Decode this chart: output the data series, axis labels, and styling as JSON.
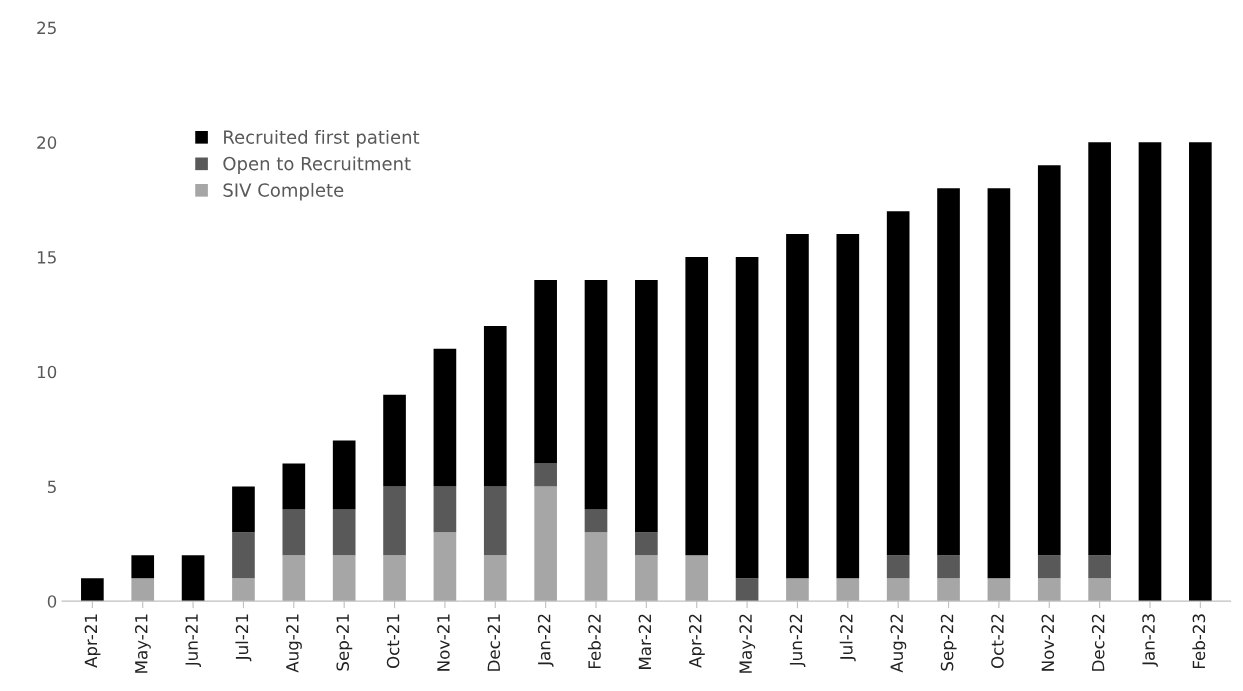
{
  "chart_data": {
    "type": "bar",
    "stacked": true,
    "categories": [
      "Apr-21",
      "May-21",
      "Jun-21",
      "Jul-21",
      "Aug-21",
      "Sep-21",
      "Oct-21",
      "Nov-21",
      "Dec-21",
      "Jan-22",
      "Feb-22",
      "Mar-22",
      "Apr-22",
      "May-22",
      "Jun-22",
      "Jul-22",
      "Aug-22",
      "Sep-22",
      "Oct-22",
      "Nov-22",
      "Dec-22",
      "Jan-23",
      "Feb-23"
    ],
    "series": [
      {
        "name": "SIV Complete",
        "color": "#a6a6a6",
        "values": [
          0,
          1,
          0,
          1,
          2,
          2,
          2,
          3,
          2,
          5,
          3,
          2,
          2,
          0,
          1,
          1,
          1,
          1,
          1,
          1,
          1,
          0,
          0
        ]
      },
      {
        "name": "Open to Recruitment",
        "color": "#595959",
        "values": [
          0,
          0,
          0,
          2,
          2,
          2,
          3,
          2,
          3,
          1,
          1,
          1,
          0,
          1,
          0,
          0,
          1,
          1,
          0,
          1,
          1,
          0,
          0
        ]
      },
      {
        "name": "Recruited first patient",
        "color": "#000000",
        "values": [
          1,
          1,
          2,
          2,
          2,
          3,
          4,
          6,
          7,
          8,
          10,
          11,
          13,
          14,
          15,
          15,
          15,
          16,
          17,
          17,
          18,
          20,
          20
        ]
      }
    ],
    "ylim": [
      0,
      25
    ],
    "yticks": [
      0,
      5,
      10,
      15,
      20,
      25
    ],
    "grid": false,
    "legend": "top left"
  }
}
